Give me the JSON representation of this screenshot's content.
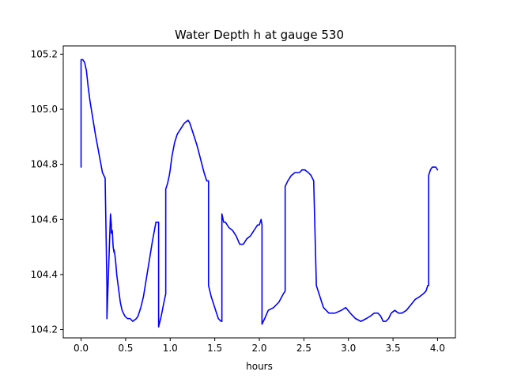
{
  "chart_data": {
    "type": "line",
    "title": "Water Depth h at gauge 530",
    "xlabel": "hours",
    "ylabel": "",
    "xlim": [
      -0.2,
      4.2
    ],
    "ylim": [
      104.17,
      105.23
    ],
    "xticks": [
      0.0,
      0.5,
      1.0,
      1.5,
      2.0,
      2.5,
      3.0,
      3.5,
      4.0
    ],
    "xtick_labels": [
      "0.0",
      "0.5",
      "1.0",
      "1.5",
      "2.0",
      "2.5",
      "3.0",
      "3.5",
      "4.0"
    ],
    "yticks": [
      104.2,
      104.4,
      104.6,
      104.8,
      105.0,
      105.2
    ],
    "ytick_labels": [
      "104.2",
      "104.4",
      "104.6",
      "104.8",
      "105.0",
      "105.2"
    ],
    "grid": false,
    "series": [
      {
        "color": "#0000ff",
        "x": [
          0.0,
          0.0,
          0.02,
          0.04,
          0.06,
          0.08,
          0.1,
          0.13,
          0.16,
          0.2,
          0.24,
          0.27,
          0.29,
          0.29,
          0.33,
          0.34,
          0.34,
          0.35,
          0.36,
          0.37,
          0.37,
          0.38,
          0.39,
          0.4,
          0.42,
          0.44,
          0.46,
          0.49,
          0.52,
          0.55,
          0.58,
          0.62,
          0.64,
          0.67,
          0.7,
          0.73,
          0.76,
          0.8,
          0.84,
          0.87,
          0.87,
          0.9,
          0.93,
          0.95,
          0.95,
          0.97,
          0.99,
          1.0,
          1.02,
          1.05,
          1.08,
          1.12,
          1.16,
          1.2,
          1.22,
          1.26,
          1.3,
          1.34,
          1.38,
          1.41,
          1.43,
          1.43,
          1.46,
          1.5,
          1.54,
          1.57,
          1.58,
          1.58,
          1.6,
          1.62,
          1.66,
          1.7,
          1.74,
          1.78,
          1.8,
          1.82,
          1.86,
          1.9,
          1.92,
          1.94,
          1.96,
          1.98,
          2.0,
          2.02,
          2.03,
          2.03,
          2.06,
          2.1,
          2.16,
          2.22,
          2.27,
          2.29,
          2.29,
          2.32,
          2.36,
          2.4,
          2.45,
          2.48,
          2.51,
          2.55,
          2.58,
          2.61,
          2.61,
          2.64,
          2.68,
          2.72,
          2.78,
          2.85,
          2.92,
          2.97,
          3.02,
          3.08,
          3.14,
          3.2,
          3.25,
          3.29,
          3.33,
          3.36,
          3.39,
          3.42,
          3.45,
          3.48,
          3.52,
          3.56,
          3.6,
          3.65,
          3.7,
          3.75,
          3.8,
          3.84,
          3.87,
          3.89,
          3.9,
          3.9,
          3.92,
          3.94,
          3.96,
          3.98,
          4.0
        ],
        "y": [
          104.79,
          105.18,
          105.18,
          105.17,
          105.14,
          105.08,
          105.03,
          104.97,
          104.91,
          104.84,
          104.77,
          104.75,
          104.36,
          104.24,
          104.62,
          104.58,
          104.55,
          104.56,
          104.5,
          104.48,
          104.49,
          104.47,
          104.44,
          104.4,
          104.35,
          104.3,
          104.27,
          104.25,
          104.24,
          104.24,
          104.23,
          104.24,
          104.25,
          104.28,
          104.32,
          104.38,
          104.44,
          104.52,
          104.59,
          104.59,
          104.21,
          104.25,
          104.3,
          104.33,
          104.71,
          104.73,
          104.76,
          104.78,
          104.83,
          104.88,
          104.91,
          104.93,
          104.95,
          104.96,
          104.95,
          104.91,
          104.87,
          104.82,
          104.77,
          104.74,
          104.74,
          104.36,
          104.32,
          104.28,
          104.24,
          104.23,
          104.23,
          104.62,
          104.59,
          104.59,
          104.57,
          104.56,
          104.54,
          104.51,
          104.51,
          104.51,
          104.53,
          104.54,
          104.55,
          104.56,
          104.57,
          104.58,
          104.58,
          104.6,
          104.58,
          104.22,
          104.24,
          104.27,
          104.28,
          104.3,
          104.33,
          104.34,
          104.72,
          104.74,
          104.76,
          104.77,
          104.77,
          104.78,
          104.78,
          104.77,
          104.76,
          104.74,
          104.74,
          104.36,
          104.32,
          104.28,
          104.26,
          104.26,
          104.27,
          104.28,
          104.26,
          104.24,
          104.23,
          104.24,
          104.25,
          104.26,
          104.26,
          104.25,
          104.23,
          104.23,
          104.24,
          104.26,
          104.27,
          104.26,
          104.26,
          104.27,
          104.29,
          104.31,
          104.32,
          104.33,
          104.34,
          104.36,
          104.36,
          104.76,
          104.78,
          104.79,
          104.79,
          104.79,
          104.78
        ]
      }
    ]
  }
}
